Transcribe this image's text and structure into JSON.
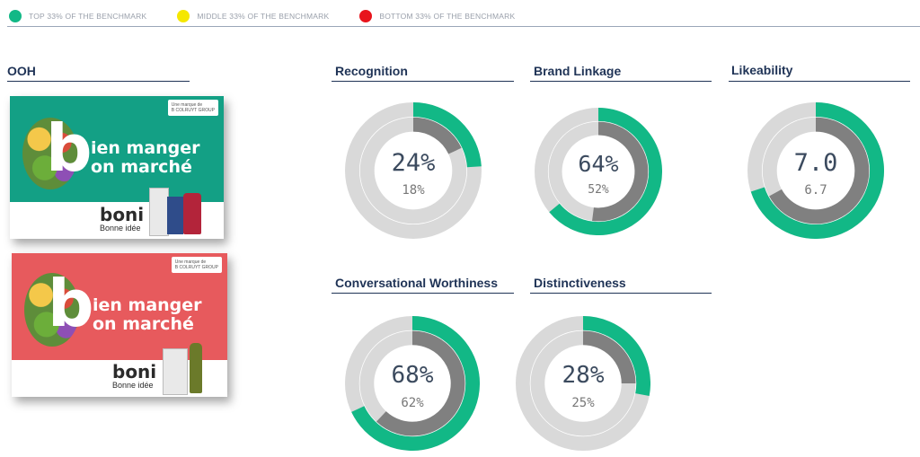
{
  "legend": {
    "top_label": "TOP 33% OF THE BENCHMARK",
    "middle_label": "MIDDLE 33% OF THE BENCHMARK",
    "bottom_label": "BOTTOM 33% OF THE BENCHMARK",
    "top_color": "#12b886",
    "middle_color": "#f5e700",
    "bottom_color": "#e8141c"
  },
  "media": {
    "title": "OOH",
    "ads": [
      {
        "theme_color": "#13a085",
        "badge": "Une marque de\nB COLRUYT GROUP",
        "letter": "b",
        "headline_line1": "ien manger",
        "headline_line2": "on marché",
        "brand": "boni",
        "tagline": "Bonne idée"
      },
      {
        "theme_color": "#e75a5d",
        "badge": "Une marque de\nB COLRUYT GROUP",
        "letter": "b",
        "headline_line1": "ien manger",
        "headline_line2": "on marché",
        "brand": "boni",
        "tagline": "Bonne idée"
      }
    ]
  },
  "chart_data": [
    {
      "type": "donut",
      "title": "Recognition",
      "value": 24,
      "benchmark": 18,
      "max": 100,
      "value_label": "24%",
      "benchmark_label": "18%",
      "band": "top"
    },
    {
      "type": "donut",
      "title": "Brand Linkage",
      "value": 64,
      "benchmark": 52,
      "max": 100,
      "value_label": "64%",
      "benchmark_label": "52%",
      "band": "top"
    },
    {
      "type": "donut",
      "title": "Likeability",
      "value": 7.0,
      "benchmark": 6.7,
      "max": 10,
      "value_label": "7.0",
      "benchmark_label": "6.7",
      "band": "top"
    },
    {
      "type": "donut",
      "title": "Conversational Worthiness",
      "value": 68,
      "benchmark": 62,
      "max": 100,
      "value_label": "68%",
      "benchmark_label": "62%",
      "band": "top"
    },
    {
      "type": "donut",
      "title": "Distinctiveness",
      "value": 28,
      "benchmark": 25,
      "max": 100,
      "value_label": "28%",
      "benchmark_label": "25%",
      "band": "top"
    }
  ],
  "colors": {
    "accent_green": "#12b886",
    "benchmark_gray": "#808080",
    "track_gray": "#d9d9d9",
    "title_navy": "#1f3356"
  }
}
